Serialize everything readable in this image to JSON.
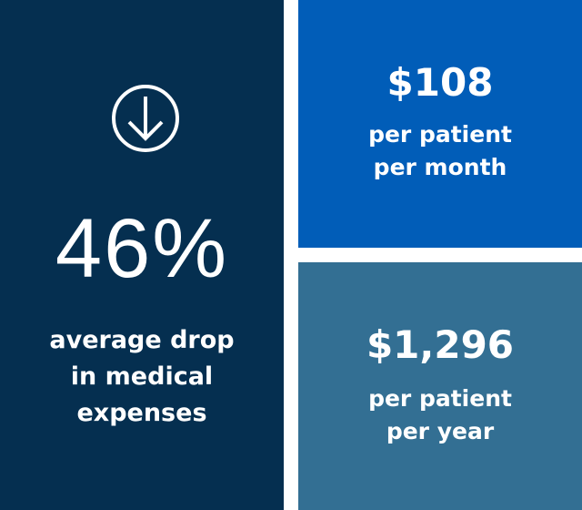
{
  "left": {
    "icon": "arrow-down-circle-icon",
    "value": "46%",
    "label_lines": [
      "average drop",
      "in medical",
      "expenses"
    ]
  },
  "top_right": {
    "value": "$108",
    "label_lines": [
      "per patient",
      "per month"
    ]
  },
  "bottom_right": {
    "value": "$1,296",
    "label_lines": [
      "per patient",
      "per year"
    ]
  },
  "colors": {
    "navy": "#052f50",
    "blue": "#015db8",
    "steel": "#336f93"
  }
}
